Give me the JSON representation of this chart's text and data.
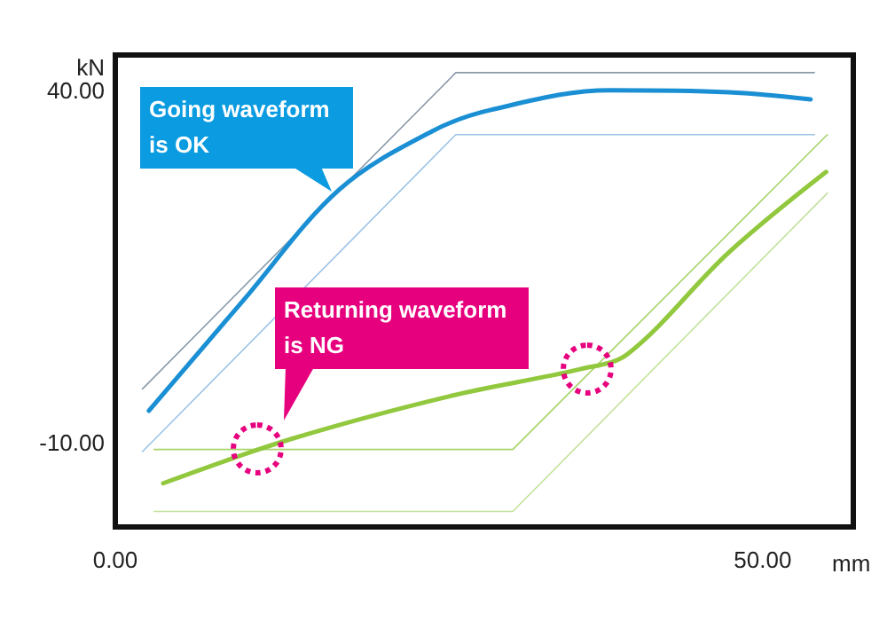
{
  "chart_data": {
    "type": "line",
    "xlabel": "mm",
    "ylabel": "kN",
    "xlim": [
      0,
      57
    ],
    "ylim": [
      -22,
      45
    ],
    "xticks": [
      {
        "value": 0,
        "label": "0.00"
      },
      {
        "value": 50,
        "label": "50.00"
      }
    ],
    "yticks": [
      {
        "value": -10,
        "label": "-10.00"
      },
      {
        "value": 40,
        "label": "40.00"
      }
    ],
    "grid": false,
    "marker": "none",
    "line_style": "solid",
    "series": [
      {
        "color": "#1a8fd4",
        "x": [
          2.6,
          9.9,
          17.3,
          24.5,
          29.0,
          38.2,
          47.4,
          53.7
        ],
        "values": [
          -5.5,
          10.2,
          25.9,
          34.2,
          37.2,
          40.0,
          39.7,
          38.7
        ]
      },
      {
        "color": "#92c83e",
        "x": [
          54.9,
          47.4,
          39.6,
          35.9,
          25.9,
          13.6,
          3.7
        ],
        "values": [
          28.4,
          17,
          2.6,
          0.4,
          -3.4,
          -9.5,
          -15.8
        ]
      },
      {
        "color": "#8a9aaa",
        "x": [
          2.1,
          26.3,
          54
        ],
        "values": [
          -2.4,
          42.5,
          42.5
        ]
      },
      {
        "color": "#9cc3e6",
        "x": [
          2.1,
          26.3,
          54
        ],
        "values": [
          -11.3,
          33.7,
          33.7
        ]
      },
      {
        "color": "#a6d36a",
        "x": [
          3,
          30.7,
          55
        ],
        "values": [
          -11,
          -11,
          33.7
        ]
      },
      {
        "color": "#c3e29c",
        "x": [
          3,
          30.7,
          55
        ],
        "values": [
          -19.8,
          -19.8,
          25.4
        ]
      }
    ],
    "annotations": [
      "Going waveform is OK",
      "Returning waveform is NG"
    ]
  }
}
